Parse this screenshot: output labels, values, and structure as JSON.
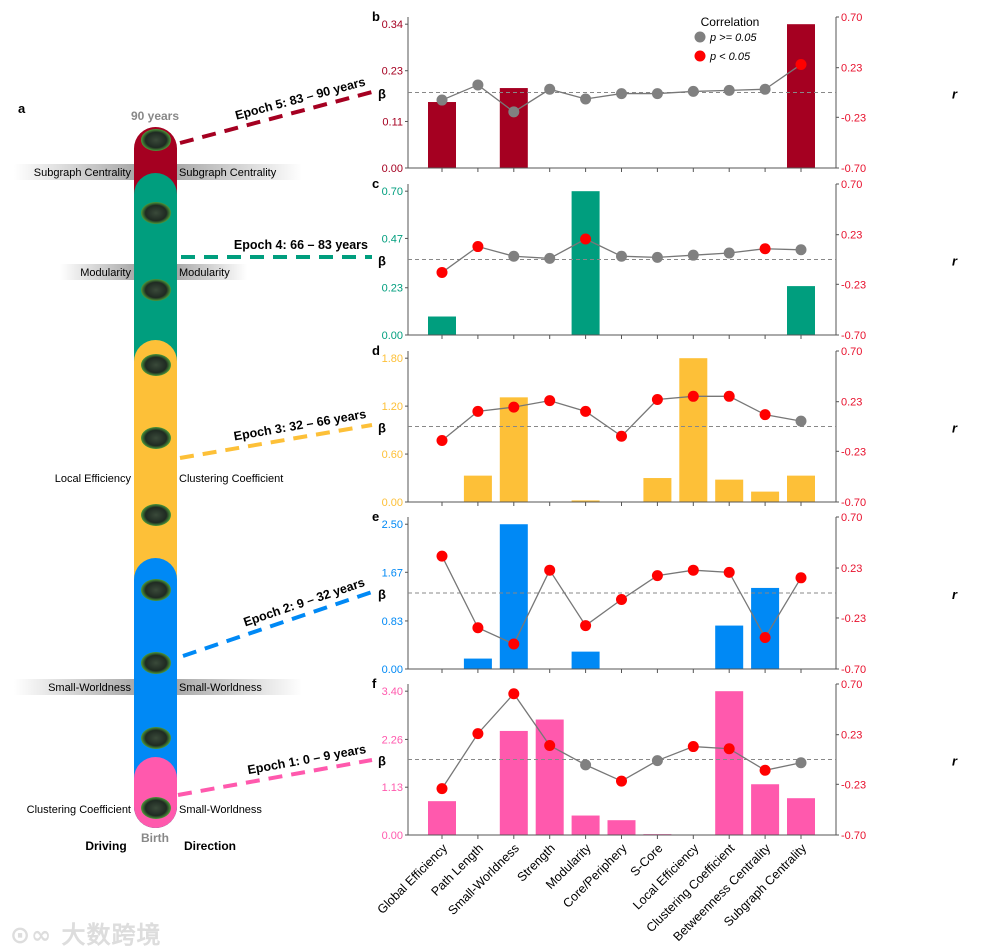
{
  "panel_a": {
    "label": "a",
    "top_label": "90 years",
    "bottom_label": "Birth",
    "driving_label": "Driving",
    "direction_label": "Direction",
    "segments": [
      {
        "name": "epoch-5",
        "color": "#A50021"
      },
      {
        "name": "epoch-4",
        "color": "#009E7E"
      },
      {
        "name": "epoch-3",
        "color": "#FDC038"
      },
      {
        "name": "epoch-2",
        "color": "#0089F5"
      },
      {
        "name": "epoch-1",
        "color": "#FF59AD"
      }
    ],
    "epochs": [
      {
        "label": "Epoch 5: 83 – 90 years",
        "color": "#A50021"
      },
      {
        "label": "Epoch 4: 66 – 83 years",
        "color": "#009E7E"
      },
      {
        "label": "Epoch 3: 32 – 66 years",
        "color": "#FDC038"
      },
      {
        "label": "Epoch 2: 9 – 32 years",
        "color": "#0089F5"
      },
      {
        "label": "Epoch 1: 0 – 9 years",
        "color": "#FF59AD"
      }
    ],
    "side_labels": [
      {
        "driving": "Subgraph Centrality",
        "direction": "Subgraph Centrality",
        "band": true
      },
      {
        "driving": "Modularity",
        "direction": "Modularity",
        "band": true
      },
      {
        "driving": "Local Efficiency",
        "direction": "Clustering Coefficient",
        "band": false
      },
      {
        "driving": "Small-Worldness",
        "direction": "Small-Worldness",
        "band": true
      },
      {
        "driving": "Clustering Coefficient",
        "direction": "Small-Worldness",
        "band": false
      }
    ],
    "brain_icon_count": 10
  },
  "watermark": "大数跨境",
  "chart_data": [
    {
      "panel": "b",
      "type": "bar+line",
      "color": "#A50021",
      "ylabel": "β",
      "y2label": "r",
      "yticks": [
        "0.00",
        "0.11",
        "0.23",
        "0.34"
      ],
      "ylim": [
        0,
        0.357
      ],
      "y2ticks": [
        "-0.70",
        "-0.23",
        "0.23",
        "0.70"
      ],
      "y2lim": [
        -0.7,
        0.7
      ],
      "beta": [
        0.156,
        0,
        0.189,
        0,
        0,
        0,
        0,
        0,
        0,
        0,
        0.34
      ],
      "r": [
        -0.07,
        0.07,
        -0.18,
        0.03,
        -0.06,
        -0.01,
        -0.01,
        0.01,
        0.02,
        0.03,
        0.26
      ],
      "significant": [
        false,
        false,
        false,
        false,
        false,
        false,
        false,
        false,
        false,
        false,
        true
      ],
      "legend": {
        "title": "Correlation",
        "items": [
          {
            "label": "p >= 0.05",
            "color": "#808080"
          },
          {
            "label": "p < 0.05",
            "color": "#FF0000"
          }
        ],
        "placement": "top-center"
      }
    },
    {
      "panel": "c",
      "type": "bar+line",
      "color": "#009E7E",
      "ylabel": "β",
      "y2label": "r",
      "yticks": [
        "0.00",
        "0.23",
        "0.47",
        "0.70"
      ],
      "ylim": [
        0,
        0.735
      ],
      "y2ticks": [
        "-0.70",
        "-0.23",
        "0.23",
        "0.70"
      ],
      "y2lim": [
        -0.7,
        0.7
      ],
      "beta": [
        0.09,
        0,
        0,
        0,
        0.7,
        0,
        0,
        0,
        0,
        0,
        0.238
      ],
      "r": [
        -0.12,
        0.12,
        0.03,
        0.01,
        0.19,
        0.03,
        0.02,
        0.04,
        0.06,
        0.1,
        0.09
      ],
      "significant": [
        true,
        true,
        false,
        false,
        true,
        false,
        false,
        false,
        false,
        true,
        false
      ]
    },
    {
      "panel": "d",
      "type": "bar+line",
      "color": "#FDC038",
      "ylabel": "β",
      "y2label": "r",
      "yticks": [
        "0.00",
        "0.60",
        "1.20",
        "1.80"
      ],
      "ylim": [
        0,
        1.89
      ],
      "y2ticks": [
        "-0.70",
        "-0.23",
        "0.23",
        "0.70"
      ],
      "y2lim": [
        -0.7,
        0.7
      ],
      "beta": [
        0,
        0.33,
        1.31,
        0,
        0.02,
        0,
        0.3,
        1.8,
        0.28,
        0.13,
        0.33
      ],
      "r": [
        -0.13,
        0.14,
        0.18,
        0.24,
        0.14,
        -0.09,
        0.25,
        0.28,
        0.28,
        0.11,
        0.05
      ],
      "significant": [
        true,
        true,
        true,
        true,
        true,
        true,
        true,
        true,
        true,
        true,
        false
      ]
    },
    {
      "panel": "e",
      "type": "bar+line",
      "color": "#0089F5",
      "ylabel": "β",
      "y2label": "r",
      "yticks": [
        "0.00",
        "0.83",
        "1.67",
        "2.50"
      ],
      "ylim": [
        0,
        2.625
      ],
      "y2ticks": [
        "-0.70",
        "-0.23",
        "0.23",
        "0.70"
      ],
      "y2lim": [
        -0.7,
        0.7
      ],
      "beta": [
        0,
        0.18,
        2.5,
        0,
        0.3,
        0,
        0,
        0,
        0.75,
        1.4,
        0
      ],
      "r": [
        0.34,
        -0.32,
        -0.47,
        0.21,
        -0.3,
        -0.06,
        0.16,
        0.21,
        0.19,
        -0.41,
        0.14
      ],
      "significant": [
        true,
        true,
        true,
        true,
        true,
        true,
        true,
        true,
        true,
        true,
        true
      ]
    },
    {
      "panel": "f",
      "type": "bar+line",
      "color": "#FF59AD",
      "ylabel": "β",
      "y2label": "r",
      "yticks": [
        "0.00",
        "1.13",
        "2.26",
        "3.40"
      ],
      "ylim": [
        0,
        3.57
      ],
      "y2ticks": [
        "-0.70",
        "-0.23",
        "0.23",
        "0.70"
      ],
      "y2lim": [
        -0.7,
        0.7
      ],
      "beta": [
        0.8,
        0,
        2.46,
        2.73,
        0.46,
        0.35,
        0.02,
        0,
        3.4,
        1.2,
        0.87
      ],
      "r": [
        -0.27,
        0.24,
        0.61,
        0.13,
        -0.05,
        -0.2,
        -0.01,
        0.12,
        0.1,
        -0.1,
        -0.03
      ],
      "significant": [
        true,
        true,
        true,
        true,
        false,
        true,
        false,
        true,
        true,
        true,
        false
      ],
      "categories": [
        "Global Efficiency",
        "Path Length",
        "Small-Worldness",
        "Strength",
        "Modularity",
        "Core/Periphery",
        "S-Core",
        "Local Efficiency",
        "Clustering Coefficient",
        "Betweenness Centrality",
        "Subgraph Centrality"
      ]
    }
  ]
}
